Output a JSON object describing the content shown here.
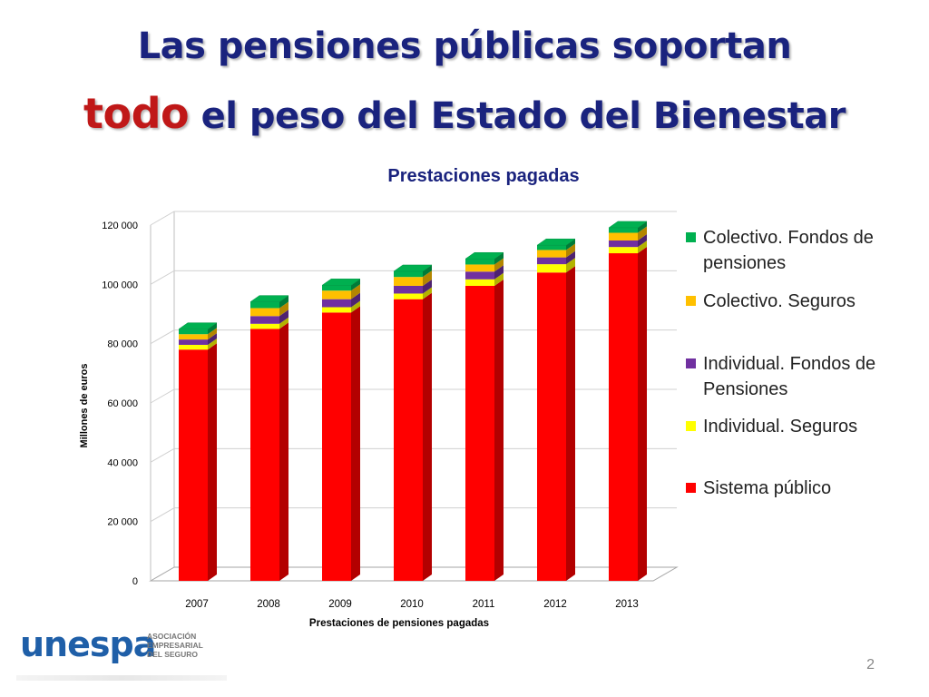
{
  "slide": {
    "title_line1": "Las pensiones públicas soportan",
    "title_line2_highlight": "todo",
    "title_line2_rest": " el peso del Estado del Bienestar",
    "page_number": "2"
  },
  "logo": {
    "word": "unespa",
    "sub": [
      "ASOCIACIÓN",
      "EMPRESARIAL",
      "DEL SEGURO"
    ]
  },
  "chart_data": {
    "type": "bar",
    "stacked": true,
    "three_d": true,
    "title": "Prestaciones pagadas",
    "xlabel": "Prestaciones de pensiones pagadas",
    "ylabel": "Millones de euros",
    "ylim": [
      0,
      120000
    ],
    "yticks": [
      0,
      20000,
      40000,
      60000,
      80000,
      100000,
      120000
    ],
    "ytick_labels": [
      "0",
      "20 000",
      "40 000",
      "60 000",
      "80 000",
      "100 000",
      "120 000"
    ],
    "categories": [
      "2007",
      "2008",
      "2009",
      "2010",
      "2011",
      "2012",
      "2013"
    ],
    "grid": true,
    "legend_position": "right",
    "series": [
      {
        "name": "Sistema público",
        "color": "#ff0000",
        "values": [
          78000,
          85000,
          90500,
          95000,
          99500,
          104000,
          110500
        ]
      },
      {
        "name": "Individual. Seguros",
        "color": "#ffff00",
        "values": [
          1600,
          1700,
          1800,
          1900,
          2200,
          2800,
          2100
        ]
      },
      {
        "name": "Individual. Fondos de Pensiones",
        "color": "#7030a0",
        "values": [
          1800,
          2600,
          2700,
          2600,
          2600,
          2300,
          2200
        ]
      },
      {
        "name": "Colectivo. Seguros",
        "color": "#ffc000",
        "values": [
          1800,
          2700,
          2900,
          3000,
          2400,
          2500,
          2600
        ]
      },
      {
        "name": "Colectivo. Fondos de pensiones",
        "color": "#00b050",
        "values": [
          1700,
          2100,
          1800,
          1900,
          1900,
          1600,
          1700
        ]
      }
    ]
  }
}
